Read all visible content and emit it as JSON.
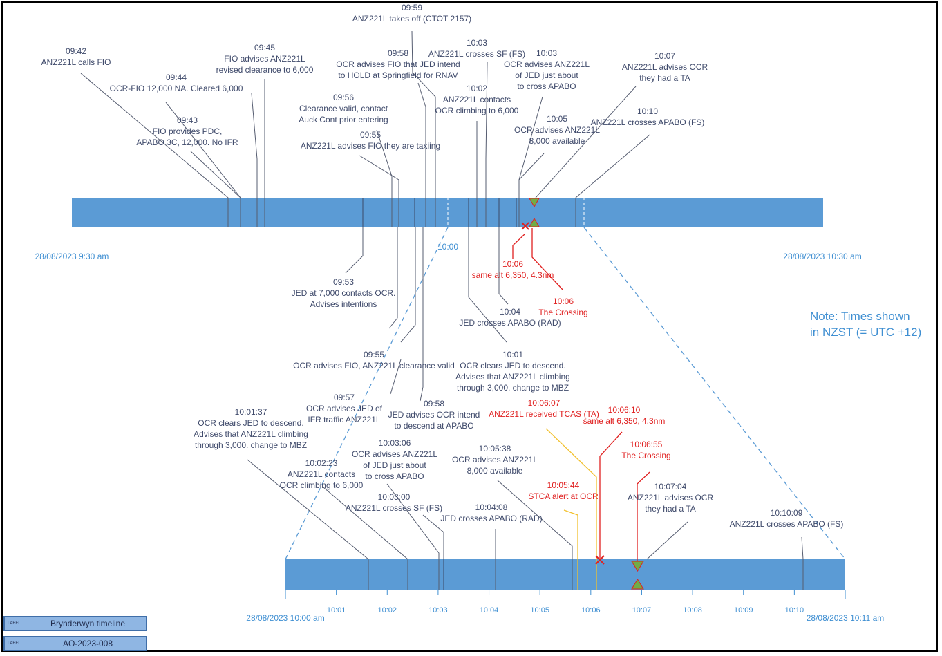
{
  "main_timeline": {
    "start_label": "28/08/2023 9:30 am",
    "end_label": "28/08/2023 10:30 am",
    "zoom_start_tick": "10:00",
    "bar_color": "#5b9bd5"
  },
  "detail_timeline": {
    "start_label": "28/08/2023 10:00 am",
    "end_label": "28/08/2023 10:11 am",
    "ticks": [
      "10:01",
      "10:02",
      "10:03",
      "10:04",
      "10:05",
      "10:06",
      "10:07",
      "10:08",
      "10:09",
      "10:10"
    ]
  },
  "events_top": [
    {
      "time": "09:42",
      "lines": [
        "ANZ221L calls FIO"
      ]
    },
    {
      "time": "09:44",
      "lines": [
        "OCR-FIO 12,000 NA. Cleared 6,000"
      ]
    },
    {
      "time": "09:43",
      "lines": [
        "FIO provides PDC,",
        "APABO 3C, 12,000. No IFR"
      ]
    },
    {
      "time": "09:45",
      "lines": [
        "FIO advises ANZ221L",
        "revised clearance to 6,000"
      ]
    },
    {
      "time": "09:59",
      "lines": [
        "ANZ221L takes off (CTOT 2157)"
      ]
    },
    {
      "time": "09:58",
      "lines": [
        "OCR advises FIO that JED intend",
        "to HOLD at Springfield for RNAV"
      ]
    },
    {
      "time": "09:56",
      "lines": [
        "Clearance valid, contact",
        "Auck Cont prior entering"
      ]
    },
    {
      "time": "09:55",
      "lines": [
        "ANZ221L advises FIO they are taxiing"
      ]
    },
    {
      "time": "10:03",
      "lines": [
        "ANZ221L crosses SF (FS)"
      ]
    },
    {
      "time": "10:02",
      "lines": [
        "ANZ221L contacts",
        "OCR climbing to 6,000"
      ]
    },
    {
      "time": "10:03",
      "lines": [
        "OCR advises ANZ221L",
        "of JED just about",
        "to cross APABO"
      ]
    },
    {
      "time": "10:05",
      "lines": [
        "OCR advises ANZ221L",
        "8,000 available"
      ]
    },
    {
      "time": "10:07",
      "lines": [
        "ANZ221L advises OCR",
        "they had a TA"
      ]
    },
    {
      "time": "10:10",
      "lines": [
        "ANZ221L crosses APABO (FS)"
      ]
    }
  ],
  "events_middle": [
    {
      "time": "09:53",
      "lines": [
        "JED at 7,000 contacts OCR.",
        "Advises intentions"
      ]
    },
    {
      "time": "10:06",
      "lines": [
        "same alt 6,350, 4.3nm"
      ],
      "alert": true
    },
    {
      "time": "10:06",
      "lines": [
        "The Crossing"
      ],
      "alert": true
    },
    {
      "time": "10:04",
      "lines": [
        "JED crosses APABO (RAD)"
      ]
    },
    {
      "time": "09:55",
      "lines": [
        "OCR advises FIO, ANZ221L clearance valid"
      ]
    },
    {
      "time": "10:01",
      "lines": [
        "OCR clears JED to descend.",
        "Advises that ANZ221L climbing",
        "through 3,000. change to MBZ"
      ]
    },
    {
      "time": "09:57",
      "lines": [
        "OCR advises JED of",
        "IFR traffic ANZ221L"
      ]
    },
    {
      "time": "09:58",
      "lines": [
        "JED advises OCR intend",
        "to descend at APABO"
      ]
    }
  ],
  "events_detail": [
    {
      "time": "10:01:37",
      "lines": [
        "OCR clears JED to descend.",
        "Advises that ANZ221L climbing",
        "through 3,000. change to MBZ"
      ]
    },
    {
      "time": "10:02:23",
      "lines": [
        "ANZ221L contacts",
        "OCR climbing to 6,000"
      ]
    },
    {
      "time": "10:03:06",
      "lines": [
        "OCR advises ANZ221L",
        "of JED just about",
        "to cross APABO"
      ]
    },
    {
      "time": "10:03:00",
      "lines": [
        "ANZ221L crosses SF (FS)"
      ]
    },
    {
      "time": "10:05:38",
      "lines": [
        "OCR advises ANZ221L",
        "8,000 available"
      ]
    },
    {
      "time": "10:04:08",
      "lines": [
        "JED crosses APABO (RAD)"
      ]
    },
    {
      "time": "10:06:07",
      "lines": [
        "ANZ221L received TCAS (TA)"
      ],
      "alert": true
    },
    {
      "time": "10:06:10",
      "lines": [
        "same alt 6,350, 4.3nm"
      ],
      "alert": true
    },
    {
      "time": "10:06:55",
      "lines": [
        "The Crossing"
      ],
      "alert": true
    },
    {
      "time": "10:05:44",
      "lines": [
        "STCA alert at OCR"
      ],
      "alert": true
    },
    {
      "time": "10:07:04",
      "lines": [
        "ANZ221L advises OCR",
        "they had a TA"
      ]
    },
    {
      "time": "10:10:09",
      "lines": [
        "ANZ221L crosses APABO (FS)"
      ]
    }
  ],
  "note": {
    "lines": [
      "Note: Times shown",
      "in NZST (= UTC +12)"
    ]
  },
  "labels": [
    {
      "tag": "LABEL",
      "text": "Brynderwyn timeline"
    },
    {
      "tag": "LABEL",
      "text": "AO-2023-008"
    }
  ],
  "colors": {
    "text": "#3f4a6b",
    "alert": "#e02020",
    "axis": "#3f8fd2",
    "bar": "#5b9bd5",
    "marker": "#70ad47",
    "stca": "#f2c12e"
  }
}
